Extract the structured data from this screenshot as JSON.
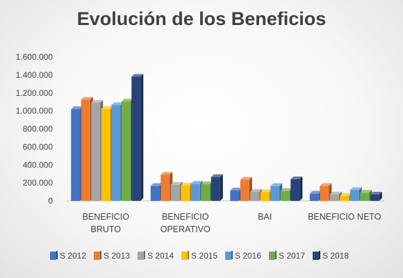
{
  "chart_data": {
    "type": "bar",
    "title": "Evolución de los Beneficios",
    "categories": [
      [
        "BENEFICIO",
        "BRUTO"
      ],
      [
        "BENEFICIO",
        "OPERATIVO"
      ],
      [
        "BAI"
      ],
      [
        "BENEFICIO NETO"
      ]
    ],
    "yticks": [
      "0",
      "200.000",
      "400.000",
      "600.000",
      "800.000",
      "1.000.000",
      "1.200.000",
      "1.400.000",
      "1.600.000"
    ],
    "ylim": [
      0,
      1600000
    ],
    "grid": false,
    "legend_position": "bottom",
    "series": [
      {
        "name": "S 2012",
        "color": "#4472C4",
        "values": [
          1020000,
          165000,
          115000,
          80000
        ]
      },
      {
        "name": "S 2013",
        "color": "#ED7D31",
        "values": [
          1125000,
          290000,
          235000,
          165000
        ]
      },
      {
        "name": "S 2014",
        "color": "#A5A5A5",
        "values": [
          1090000,
          180000,
          100000,
          70000
        ]
      },
      {
        "name": "S 2015",
        "color": "#FFC000",
        "values": [
          1020000,
          170000,
          95000,
          55000
        ]
      },
      {
        "name": "S 2016",
        "color": "#5B9BD5",
        "values": [
          1065000,
          190000,
          165000,
          120000
        ]
      },
      {
        "name": "S 2017",
        "color": "#70AD47",
        "values": [
          1105000,
          185000,
          110000,
          90000
        ]
      },
      {
        "name": "S 2018",
        "color": "#264478",
        "values": [
          1380000,
          265000,
          240000,
          70000
        ]
      }
    ]
  }
}
